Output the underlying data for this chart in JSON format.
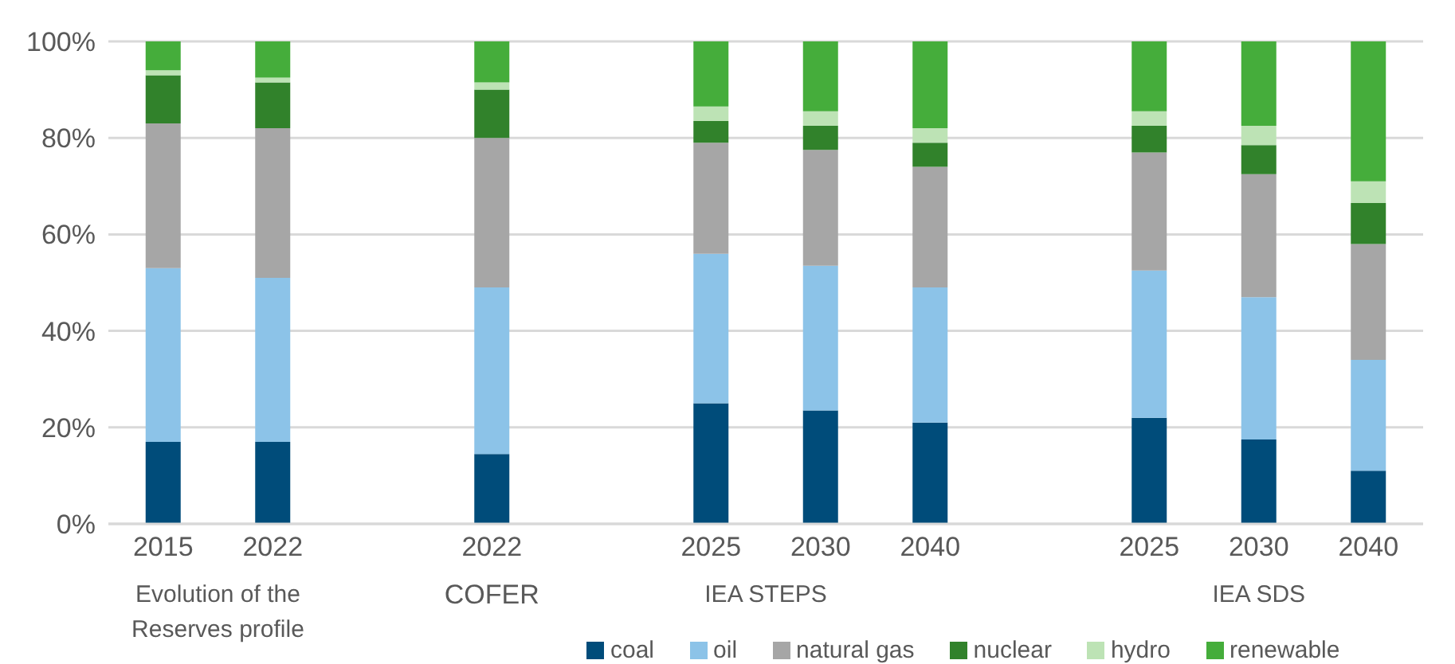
{
  "chart_data": {
    "type": "bar",
    "stacked": true,
    "categories": [
      "2015",
      "2022",
      null,
      "2022",
      null,
      "2025",
      "2030",
      "2040",
      null,
      "2025",
      "2030",
      "2040"
    ],
    "series": [
      {
        "name": "coal",
        "color": "#004c7a",
        "values": [
          17,
          17,
          null,
          14.5,
          null,
          25,
          23.5,
          21,
          null,
          22,
          17.5,
          11
        ]
      },
      {
        "name": "oil",
        "color": "#8cc3e8",
        "values": [
          36,
          34,
          null,
          34.5,
          null,
          31,
          30,
          28,
          null,
          30.5,
          29.5,
          23
        ]
      },
      {
        "name": "natural gas",
        "color": "#a6a6a6",
        "values": [
          30,
          31,
          null,
          31,
          null,
          23,
          24,
          25,
          null,
          24.5,
          25.5,
          24
        ]
      },
      {
        "name": "nuclear",
        "color": "#31822b",
        "values": [
          10,
          9.5,
          null,
          10,
          null,
          4.5,
          5,
          5,
          null,
          5.5,
          6,
          8.5
        ]
      },
      {
        "name": "hydro",
        "color": "#bde3b5",
        "values": [
          1,
          1,
          null,
          1.5,
          null,
          3,
          3,
          3,
          null,
          3,
          4,
          4.5
        ]
      },
      {
        "name": "renewable",
        "color": "#45ad3b",
        "values": [
          6,
          7.5,
          null,
          8.5,
          null,
          13.5,
          14.5,
          18,
          null,
          14.5,
          17.5,
          29
        ]
      }
    ],
    "ylim": [
      0,
      100
    ],
    "yticks": [
      {
        "value": 0,
        "label": "0%"
      },
      {
        "value": 20,
        "label": "20%"
      },
      {
        "value": 40,
        "label": "40%"
      },
      {
        "value": 60,
        "label": "60%"
      },
      {
        "value": 80,
        "label": "80%"
      },
      {
        "value": 100,
        "label": "100%"
      }
    ],
    "grid": "y",
    "legend": "bottom",
    "annotations": [
      "Evolution of the Reserves profile",
      "COFER",
      "IEA STEPS",
      "IEA SDS"
    ]
  }
}
